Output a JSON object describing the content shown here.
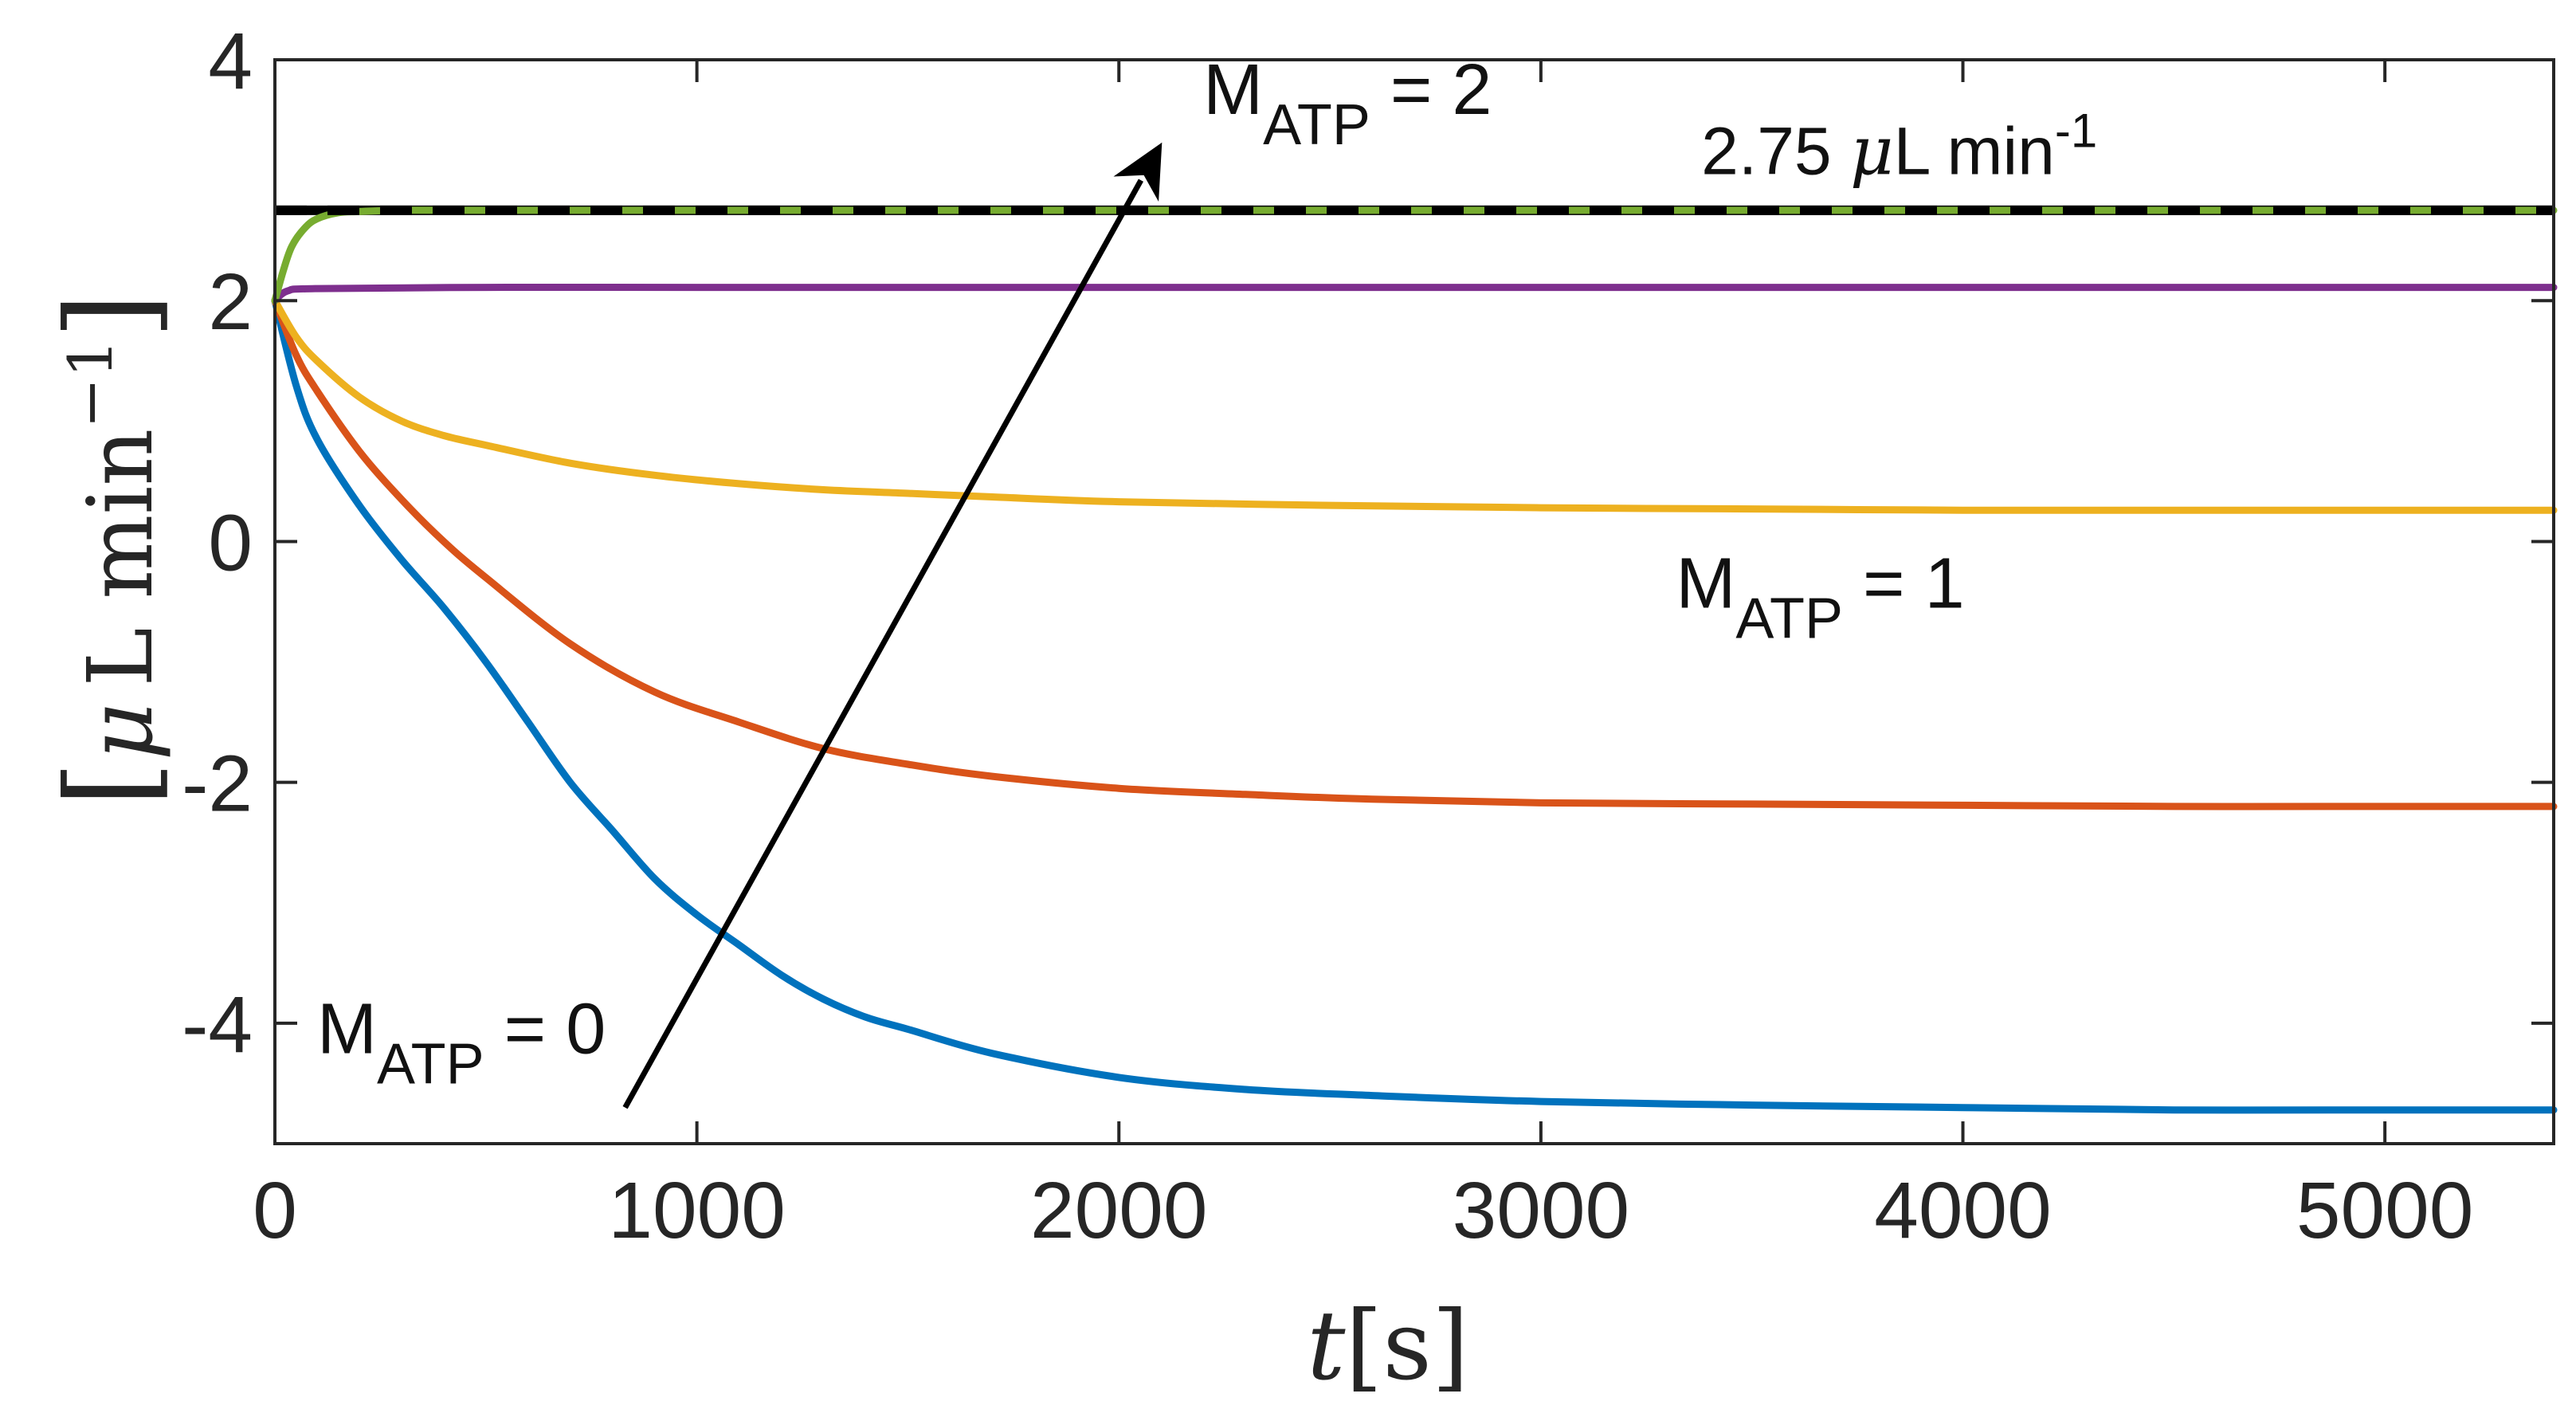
{
  "chart_data": {
    "type": "line",
    "title": "",
    "xlabel": {
      "main": "t",
      "unit": "[s]"
    },
    "ylabel": {
      "open": "[",
      "mu": "μ",
      "unit": "L min",
      "exp": "−1",
      "close": "]"
    },
    "xlim": [
      0,
      5400
    ],
    "ylim": [
      -5,
      4
    ],
    "x_ticks": [
      0,
      1000,
      2000,
      3000,
      4000,
      5000
    ],
    "x_tick_labels": [
      "0",
      "1000",
      "2000",
      "3000",
      "4000",
      "5000"
    ],
    "y_ticks": [
      -4,
      -2,
      0,
      2,
      4
    ],
    "y_tick_labels": [
      "-4",
      "-2",
      "0",
      "2",
      "4"
    ],
    "grid": false,
    "series": [
      {
        "name": "blue",
        "color": "#0072BD",
        "x": [
          0,
          50,
          100,
          200,
          300,
          400,
          500,
          600,
          700,
          800,
          900,
          1000,
          1100,
          1200,
          1300,
          1400,
          1500,
          1700,
          2000,
          2300,
          2600,
          3000,
          3500,
          4000,
          4500,
          5000,
          5400
        ],
        "y": [
          2.0,
          1.3,
          0.85,
          0.3,
          -0.15,
          -0.55,
          -1.0,
          -1.5,
          -2.0,
          -2.4,
          -2.8,
          -3.1,
          -3.35,
          -3.6,
          -3.8,
          -3.95,
          -4.05,
          -4.25,
          -4.45,
          -4.55,
          -4.6,
          -4.65,
          -4.68,
          -4.7,
          -4.72,
          -4.72,
          -4.72
        ]
      },
      {
        "name": "orange",
        "color": "#D95319",
        "x": [
          0,
          50,
          100,
          200,
          300,
          400,
          500,
          700,
          900,
          1100,
          1300,
          1500,
          1700,
          2000,
          2300,
          2600,
          3000,
          3500,
          4000,
          4500,
          5000,
          5400
        ],
        "y": [
          2.0,
          1.55,
          1.25,
          0.75,
          0.35,
          0.0,
          -0.3,
          -0.85,
          -1.25,
          -1.5,
          -1.72,
          -1.85,
          -1.95,
          -2.05,
          -2.1,
          -2.14,
          -2.17,
          -2.18,
          -2.19,
          -2.2,
          -2.2,
          -2.2
        ]
      },
      {
        "name": "yellow",
        "color": "#EDB120",
        "x": [
          0,
          50,
          100,
          200,
          300,
          400,
          500,
          700,
          900,
          1100,
          1300,
          1500,
          1700,
          2000,
          2500,
          3000,
          3500,
          4000,
          4500,
          5000,
          5400
        ],
        "y": [
          2.0,
          1.7,
          1.5,
          1.2,
          1.0,
          0.88,
          0.8,
          0.65,
          0.55,
          0.48,
          0.43,
          0.4,
          0.37,
          0.33,
          0.3,
          0.28,
          0.27,
          0.26,
          0.26,
          0.26,
          0.26
        ]
      },
      {
        "name": "purple",
        "color": "#7E2F8E",
        "x": [
          0,
          30,
          100,
          500,
          1000,
          2000,
          3000,
          4000,
          5000,
          5400
        ],
        "y": [
          2.0,
          2.08,
          2.1,
          2.11,
          2.11,
          2.11,
          2.11,
          2.11,
          2.11,
          2.11
        ]
      },
      {
        "name": "green",
        "color": "#77AC30",
        "x": [
          0,
          20,
          40,
          70,
          100,
          150,
          200,
          300,
          500,
          1000,
          2000,
          3000,
          4000,
          5000,
          5400
        ],
        "y": [
          2.0,
          2.25,
          2.45,
          2.6,
          2.68,
          2.73,
          2.74,
          2.75,
          2.75,
          2.75,
          2.75,
          2.75,
          2.75,
          2.75,
          2.75
        ]
      }
    ],
    "reference_line": {
      "y": 2.75,
      "color": "#000000",
      "style": "dashed"
    },
    "arrow": {
      "from": [
        830,
        -4.7
      ],
      "to": [
        2100,
        3.3
      ],
      "color": "#000000"
    },
    "annotations": {
      "m2": {
        "base": "M",
        "sub": "ATP",
        "rest": " = 2",
        "x": 2200,
        "y": 3.55
      },
      "m1": {
        "base": "M",
        "sub": "ATP",
        "rest": " = 1",
        "x": 3320,
        "y": -0.55
      },
      "m0": {
        "base": "M",
        "sub": "ATP",
        "rest": " = 0",
        "x": 100,
        "y": -4.25
      },
      "ref": {
        "value": "2.75 ",
        "mu": "μ",
        "unit": "L min",
        "exp": "-1",
        "x": 3380,
        "y": 3.05
      }
    }
  }
}
